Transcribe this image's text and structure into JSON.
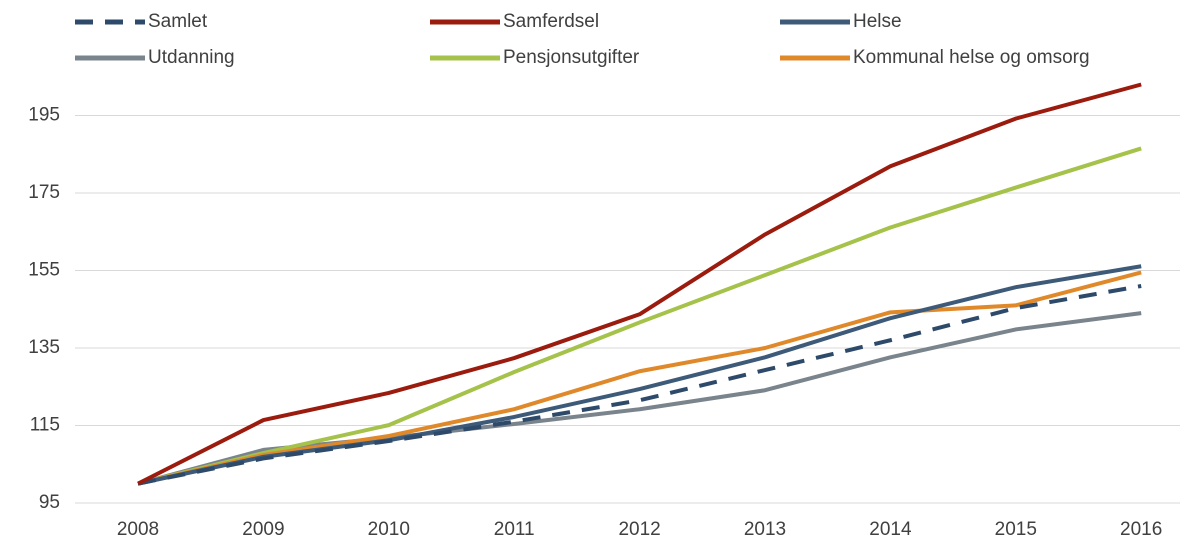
{
  "chart_data": {
    "type": "line",
    "categories": [
      "2008",
      "2009",
      "2010",
      "2011",
      "2012",
      "2013",
      "2014",
      "2015",
      "2016"
    ],
    "series": [
      {
        "name": "Samlet",
        "color": "#2e4a6b",
        "line_style": "dashed",
        "values": [
          100,
          106.5,
          111,
          116,
          121.5,
          129.3,
          137,
          145.3,
          151
        ]
      },
      {
        "name": "Samferdsel",
        "color": "#9b1c0e",
        "values": [
          100,
          116.4,
          123.4,
          132.4,
          143.7,
          164.3,
          181.9,
          194.2,
          203
        ]
      },
      {
        "name": "Helse",
        "color": "#3d5a78",
        "values": [
          100,
          106.9,
          111.2,
          117.2,
          124.4,
          132.6,
          142.7,
          150.7,
          156.1
        ]
      },
      {
        "name": "Utdanning",
        "color": "#7a848c",
        "values": [
          100,
          108.7,
          111.8,
          115.4,
          119.2,
          124.1,
          132.6,
          139.8,
          144
        ]
      },
      {
        "name": "Pensjonsutgifter",
        "color": "#a5c24a",
        "values": [
          100,
          107.9,
          115.1,
          128.8,
          141.6,
          153.8,
          166.1,
          176.4,
          186.5
        ]
      },
      {
        "name": "Kommunal helse og omsorg",
        "color": "#e0892a",
        "values": [
          100,
          107.4,
          112.3,
          119.2,
          129,
          135,
          144.2,
          146,
          154.5
        ]
      }
    ],
    "ylim": [
      95,
      215
    ],
    "yticks": [
      95,
      115,
      135,
      155,
      175,
      195
    ],
    "grid": true,
    "legend": "top"
  }
}
